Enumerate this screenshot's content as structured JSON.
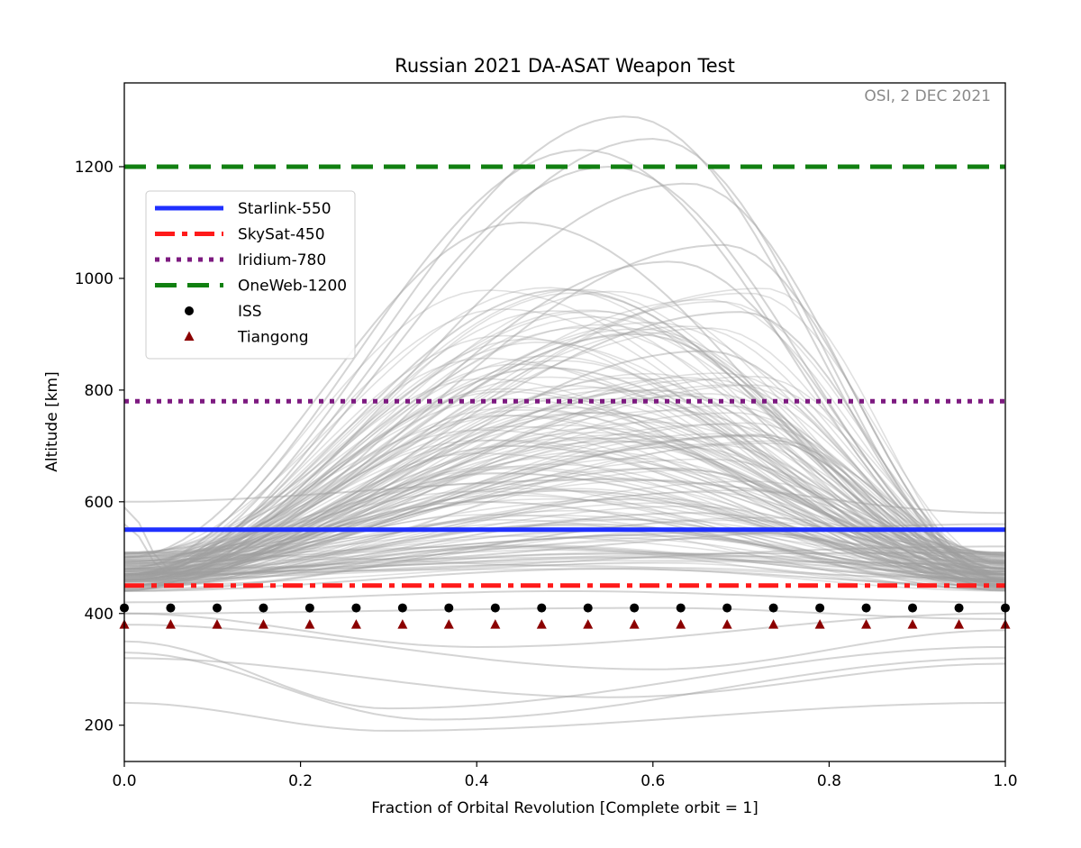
{
  "chart_data": {
    "type": "line",
    "title": "Russian 2021 DA-ASAT Weapon Test",
    "annotation": "OSI, 2 DEC 2021",
    "xlabel": "Fraction of Orbital Revolution [Complete orbit = 1]",
    "ylabel": "Altitude [km]",
    "xlim": [
      0.0,
      1.0
    ],
    "ylim": [
      135,
      1350
    ],
    "x_ticks": [
      0.0,
      0.2,
      0.4,
      0.6,
      0.8,
      1.0
    ],
    "x_tick_labels": [
      "0.0",
      "0.2",
      "0.4",
      "0.6",
      "0.8",
      "1.0"
    ],
    "y_ticks": [
      200,
      400,
      600,
      800,
      1000,
      1200
    ],
    "y_tick_labels": [
      "200",
      "400",
      "600",
      "800",
      "1000",
      "1200"
    ],
    "legend_position": "upper-left",
    "reference_lines": [
      {
        "name": "Starlink-550",
        "y": 550,
        "color": "#1f30ff",
        "style": "solid"
      },
      {
        "name": "SkySat-450",
        "y": 450,
        "color": "#ff1a1a",
        "style": "dashdot"
      },
      {
        "name": "Iridium-780",
        "y": 780,
        "color": "#7d1a80",
        "style": "dotted"
      },
      {
        "name": "OneWeb-1200",
        "y": 1200,
        "color": "#118011",
        "style": "dashed"
      }
    ],
    "marker_series": [
      {
        "name": "ISS",
        "y": 410,
        "marker": "circle",
        "color": "#000000",
        "x": [
          0.0,
          0.0526,
          0.1053,
          0.1579,
          0.2105,
          0.2632,
          0.3158,
          0.3684,
          0.4211,
          0.4737,
          0.5263,
          0.5789,
          0.6316,
          0.6842,
          0.7368,
          0.7895,
          0.8421,
          0.8947,
          0.9474,
          1.0
        ]
      },
      {
        "name": "Tiangong",
        "y": 380,
        "marker": "triangle",
        "color": "#8b0000",
        "x": [
          0.0,
          0.0526,
          0.1053,
          0.1579,
          0.2105,
          0.2632,
          0.3158,
          0.3684,
          0.4211,
          0.4737,
          0.5263,
          0.5789,
          0.6316,
          0.6842,
          0.7368,
          0.7895,
          0.8421,
          0.8947,
          0.9474,
          1.0
        ]
      }
    ],
    "debris_series": {
      "color": "#a0a0a0",
      "description_count": 180,
      "curves": [
        {
          "start": 470,
          "peak": 1290,
          "peak_x": 0.57,
          "end": 470
        },
        {
          "start": 470,
          "peak": 1250,
          "peak_x": 0.6,
          "end": 460
        },
        {
          "start": 480,
          "peak": 1230,
          "peak_x": 0.52,
          "end": 480
        },
        {
          "start": 460,
          "peak": 1200,
          "peak_x": 0.55,
          "end": 480
        },
        {
          "start": 470,
          "peak": 1170,
          "peak_x": 0.64,
          "end": 470
        },
        {
          "start": 500,
          "peak": 1100,
          "peak_x": 0.45,
          "end": 470
        },
        {
          "start": 460,
          "peak": 1060,
          "peak_x": 0.68,
          "end": 460
        },
        {
          "start": 450,
          "peak": 1030,
          "peak_x": 0.62,
          "end": 470
        },
        {
          "start": 470,
          "peak": 980,
          "peak_x": 0.5,
          "end": 480
        },
        {
          "start": 480,
          "peak": 940,
          "peak_x": 0.7,
          "end": 460
        },
        {
          "start": 460,
          "peak": 900,
          "peak_x": 0.58,
          "end": 470
        },
        {
          "start": 450,
          "peak": 870,
          "peak_x": 0.66,
          "end": 460
        },
        {
          "start": 470,
          "peak": 840,
          "peak_x": 0.48,
          "end": 480
        },
        {
          "start": 460,
          "peak": 800,
          "peak_x": 0.6,
          "end": 470
        },
        {
          "start": 470,
          "peak": 760,
          "peak_x": 0.54,
          "end": 470
        },
        {
          "start": 480,
          "peak": 720,
          "peak_x": 0.72,
          "end": 470
        },
        {
          "start": 460,
          "peak": 700,
          "peak_x": 0.44,
          "end": 460
        },
        {
          "start": 470,
          "peak": 660,
          "peak_x": 0.62,
          "end": 480
        },
        {
          "start": 600,
          "peak": 640,
          "peak_x": 0.55,
          "end": 580
        },
        {
          "start": 460,
          "peak": 620,
          "peak_x": 0.5,
          "end": 470
        },
        {
          "start": 470,
          "peak": 600,
          "peak_x": 0.4,
          "end": 460
        },
        {
          "start": 460,
          "peak": 580,
          "peak_x": 0.65,
          "end": 470
        },
        {
          "start": 470,
          "peak": 560,
          "peak_x": 0.52,
          "end": 460
        },
        {
          "start": 450,
          "peak": 540,
          "peak_x": 0.58,
          "end": 470
        },
        {
          "start": 460,
          "peak": 520,
          "peak_x": 0.45,
          "end": 460
        },
        {
          "start": 470,
          "peak": 500,
          "peak_x": 0.6,
          "end": 470
        },
        {
          "start": 440,
          "peak": 480,
          "peak_x": 0.55,
          "end": 450
        },
        {
          "start": 420,
          "peak": 440,
          "peak_x": 0.5,
          "end": 420
        },
        {
          "start": 400,
          "peak": 410,
          "peak_x": 0.6,
          "end": 390
        },
        {
          "start": 350,
          "peak": 230,
          "peak_x": 0.3,
          "end": 340,
          "dip": true
        },
        {
          "start": 330,
          "peak": 210,
          "peak_x": 0.35,
          "end": 320,
          "dip": true
        },
        {
          "start": 240,
          "peak": 190,
          "peak_x": 0.3,
          "end": 240,
          "dip": true
        },
        {
          "start": 320,
          "peak": 250,
          "peak_x": 0.55,
          "end": 310,
          "dip": true
        },
        {
          "start": 380,
          "peak": 300,
          "peak_x": 0.6,
          "end": 370,
          "dip": true
        },
        {
          "start": 400,
          "peak": 340,
          "peak_x": 0.4,
          "end": 400,
          "dip": true
        },
        {
          "start": 560,
          "peak": 470,
          "peak_x": 0.05,
          "end": 520
        },
        {
          "start": 590,
          "peak": 480,
          "peak_x": 0.05,
          "end": 560
        }
      ]
    }
  }
}
